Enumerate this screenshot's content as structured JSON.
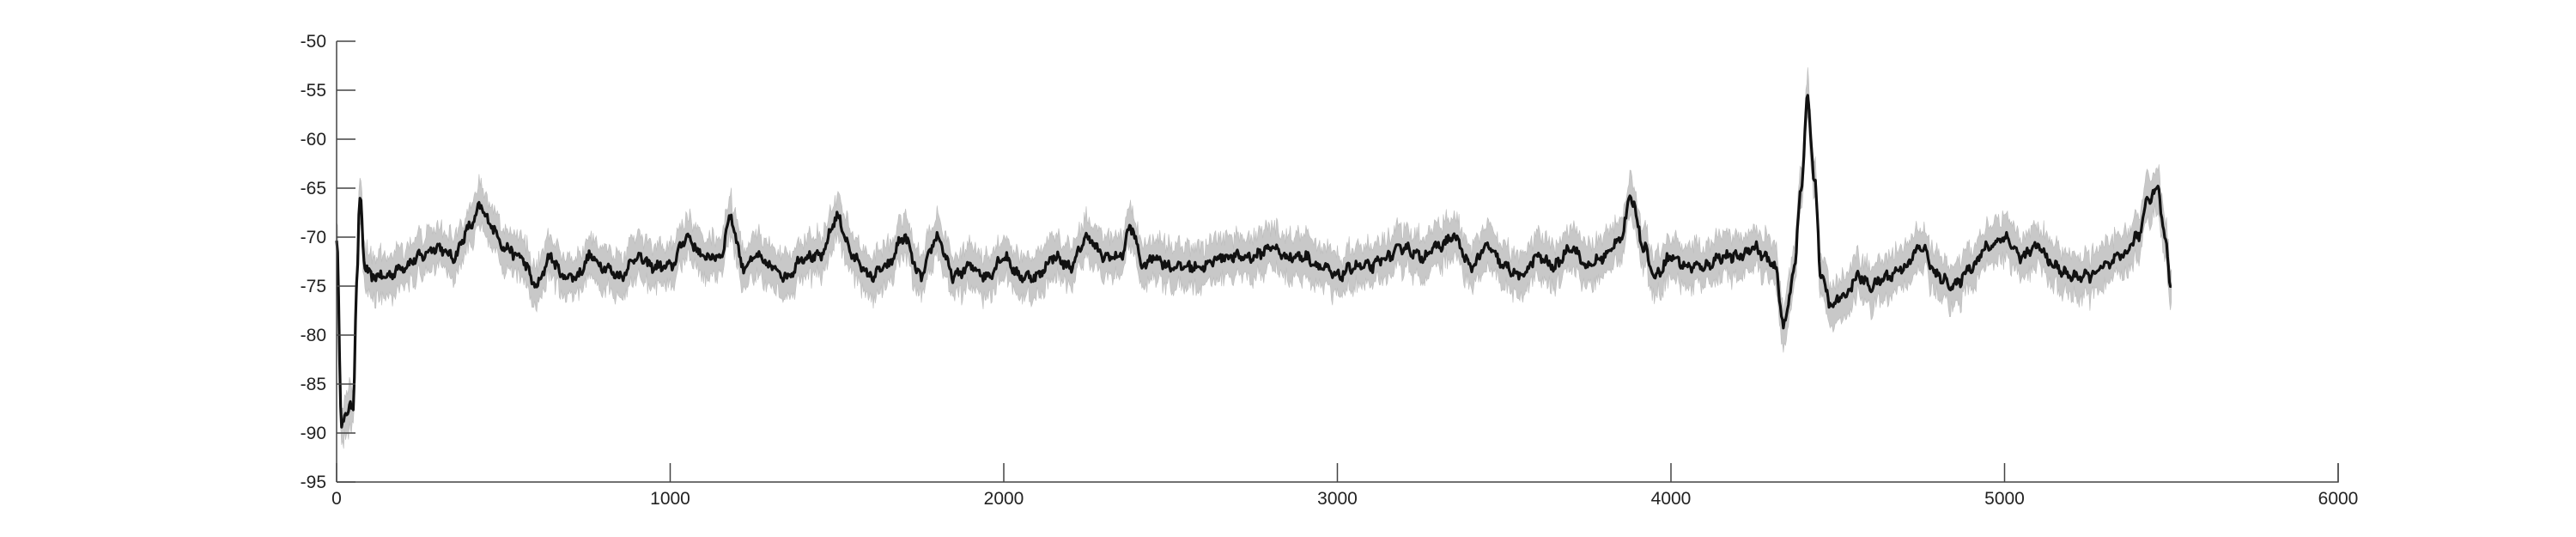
{
  "chart_data": {
    "type": "line",
    "title": "",
    "xlabel": "",
    "ylabel": "",
    "xlim": [
      0,
      6000
    ],
    "ylim": [
      -95,
      -50
    ],
    "grid": false,
    "legend": "none",
    "x_ticks": [
      0,
      1000,
      2000,
      3000,
      4000,
      5000,
      6000
    ],
    "y_ticks": [
      -95,
      -90,
      -85,
      -80,
      -75,
      -70,
      -65,
      -60,
      -55,
      -50
    ],
    "series": [
      {
        "role": "mean",
        "color": "#111111",
        "x": [
          0,
          15,
          30,
          50,
          60,
          70,
          85,
          100,
          150,
          200,
          250,
          300,
          350,
          400,
          430,
          470,
          500,
          550,
          600,
          640,
          680,
          720,
          760,
          800,
          850,
          900,
          950,
          1000,
          1050,
          1100,
          1150,
          1180,
          1220,
          1260,
          1300,
          1350,
          1400,
          1450,
          1500,
          1550,
          1600,
          1650,
          1700,
          1750,
          1800,
          1850,
          1900,
          1950,
          2000,
          2050,
          2100,
          2150,
          2200,
          2250,
          2300,
          2350,
          2380,
          2420,
          2450,
          2500,
          2550,
          2600,
          2650,
          2700,
          2750,
          2800,
          2850,
          2900,
          2950,
          3000,
          3050,
          3100,
          3150,
          3200,
          3250,
          3300,
          3350,
          3400,
          3450,
          3500,
          3550,
          3600,
          3650,
          3700,
          3750,
          3800,
          3850,
          3880,
          3920,
          3950,
          4000,
          4050,
          4100,
          4150,
          4200,
          4250,
          4280,
          4310,
          4340,
          4370,
          4390,
          4410,
          4430,
          4450,
          4480,
          4520,
          4560,
          4600,
          4650,
          4700,
          4750,
          4800,
          4850,
          4900,
          4950,
          5000,
          5050,
          5100,
          5150,
          5200,
          5250,
          5300,
          5350,
          5400,
          5430,
          5460,
          5480,
          5500
        ],
        "y": [
          -70,
          -89,
          -88,
          -87,
          -75,
          -66,
          -73,
          -74,
          -74,
          -73,
          -72,
          -71,
          -72,
          -69,
          -67,
          -69,
          -71,
          -72,
          -75,
          -72,
          -74,
          -74,
          -72,
          -73,
          -74,
          -72,
          -73,
          -73,
          -70,
          -72,
          -72,
          -68,
          -73,
          -72,
          -73,
          -74,
          -72,
          -72,
          -68,
          -72,
          -74,
          -73,
          -70,
          -74,
          -70,
          -74,
          -73,
          -74,
          -72,
          -74,
          -74,
          -72,
          -73,
          -70,
          -72,
          -72,
          -69,
          -73,
          -72,
          -73,
          -73,
          -73,
          -72,
          -72,
          -72,
          -71,
          -72,
          -72,
          -73,
          -74,
          -73,
          -73,
          -72,
          -71,
          -72,
          -71,
          -70,
          -73,
          -71,
          -73,
          -74,
          -72,
          -73,
          -71,
          -73,
          -72,
          -70,
          -66,
          -71,
          -74,
          -72,
          -73,
          -73,
          -72,
          -72,
          -71,
          -72,
          -73,
          -79,
          -73,
          -65,
          -56,
          -64,
          -74,
          -77,
          -76,
          -74,
          -75,
          -74,
          -73,
          -71,
          -74,
          -75,
          -73,
          -71,
          -70,
          -72,
          -71,
          -73,
          -74,
          -74,
          -73,
          -72,
          -70,
          -66,
          -65,
          -70,
          -75
        ]
      }
    ]
  }
}
